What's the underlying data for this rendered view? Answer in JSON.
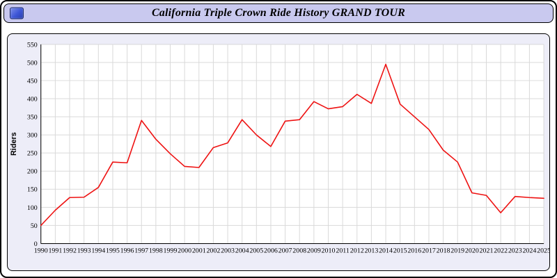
{
  "header": {
    "title": "California Triple Crown Ride History GRAND TOUR",
    "app_icon": "blue-app-icon"
  },
  "colors": {
    "titlebar_bg": "#c9c9ef",
    "panel_bg": "#ededf8",
    "frame_border": "#000000",
    "icon_blue": "#3d56d6",
    "line": "#ee1111",
    "grid": "#d9d9d9",
    "axis": "#000000",
    "tick_text": "#000000"
  },
  "chart_data": {
    "type": "line",
    "title": "California Triple Crown Ride History GRAND TOUR",
    "xlabel": "",
    "ylabel": "Riders",
    "ylim": [
      0,
      550
    ],
    "ytick_step": 50,
    "grid": true,
    "legend": false,
    "x": [
      1990,
      1991,
      1992,
      1993,
      1994,
      1995,
      1996,
      1997,
      1998,
      1999,
      2000,
      2001,
      2002,
      2003,
      2004,
      2005,
      2006,
      2007,
      2008,
      2009,
      2010,
      2011,
      2012,
      2013,
      2014,
      2015,
      2016,
      2017,
      2018,
      2019,
      2020,
      2021,
      2022,
      2023,
      2024,
      2025
    ],
    "series": [
      {
        "name": "Riders",
        "values": [
          50,
          92,
          127,
          128,
          155,
          225,
          223,
          340,
          288,
          248,
          213,
          210,
          265,
          278,
          342,
          300,
          268,
          338,
          342,
          392,
          372,
          378,
          412,
          387,
          495,
          385,
          350,
          315,
          258,
          225,
          140,
          133,
          85,
          130,
          127,
          125
        ]
      }
    ]
  }
}
